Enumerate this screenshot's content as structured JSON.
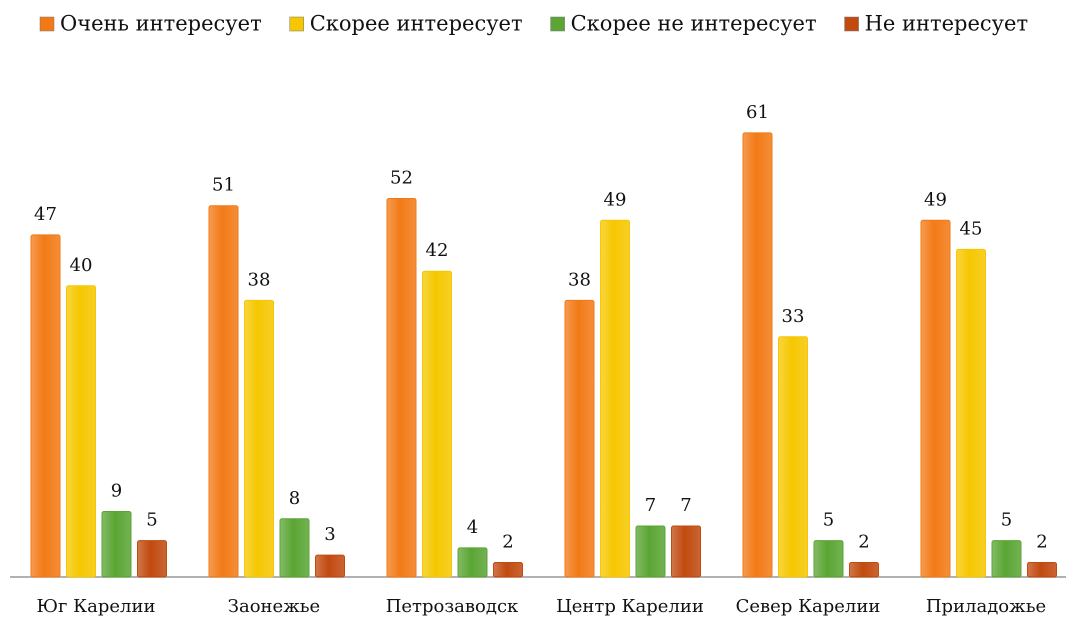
{
  "chart_data": {
    "type": "bar",
    "categories": [
      "Юг Карелии",
      "Заонежье",
      "Петрозаводск",
      "Центр Карелии",
      "Север Карелии",
      "Приладожье"
    ],
    "series": [
      {
        "name": "Очень интересует",
        "color": "#f27a16",
        "values": [
          47,
          51,
          52,
          38,
          61,
          49
        ]
      },
      {
        "name": "Скорее интересует",
        "color": "#f6c700",
        "values": [
          40,
          38,
          42,
          49,
          33,
          45
        ]
      },
      {
        "name": "Скорее не интересует",
        "color": "#5aa534",
        "values": [
          9,
          8,
          4,
          7,
          5,
          5
        ]
      },
      {
        "name": "Не интересует",
        "color": "#c14a0f",
        "values": [
          5,
          3,
          2,
          7,
          2,
          2
        ]
      }
    ],
    "legend": "top"
  }
}
